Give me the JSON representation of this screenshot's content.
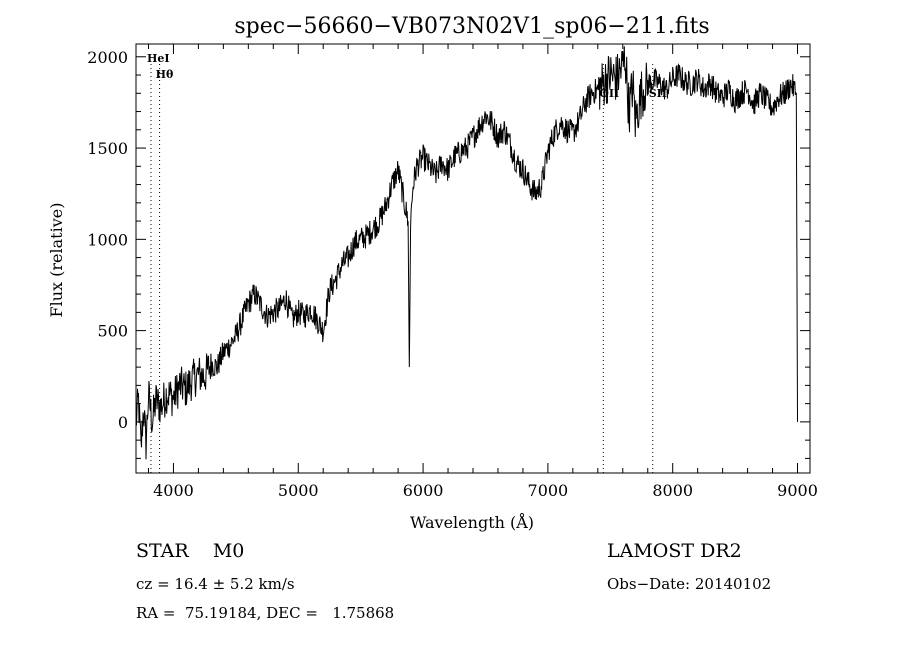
{
  "chart_data": {
    "type": "line",
    "title": "spec−56660−VB073N02V1_sp06−211.fits",
    "xlabel": "Wavelength (Å)",
    "ylabel": "Flux (relative)",
    "xlim": [
      3700,
      9100
    ],
    "ylim": [
      -280,
      2070
    ],
    "xticks": [
      4000,
      5000,
      6000,
      7000,
      8000,
      9000
    ],
    "yticks": [
      0,
      500,
      1000,
      1500,
      2000
    ],
    "grid": false,
    "series": [
      {
        "x": [
          3700,
          3720,
          3740,
          3760,
          3780,
          3800,
          3830,
          3860,
          3900,
          3950,
          4000,
          4050,
          4100,
          4150,
          4200,
          4250,
          4300,
          4350,
          4400,
          4450,
          4500,
          4550,
          4600,
          4650,
          4700,
          4750,
          4800,
          4850,
          4900,
          4950,
          5000,
          5050,
          5100,
          5150,
          5200,
          5250,
          5300,
          5350,
          5400,
          5450,
          5500,
          5550,
          5600,
          5650,
          5700,
          5750,
          5800,
          5850,
          5880,
          5890,
          5900,
          5920,
          5950,
          6000,
          6050,
          6100,
          6150,
          6200,
          6250,
          6300,
          6350,
          6400,
          6450,
          6500,
          6550,
          6600,
          6650,
          6700,
          6750,
          6800,
          6850,
          6900,
          6950,
          7000,
          7050,
          7100,
          7150,
          7200,
          7250,
          7300,
          7350,
          7400,
          7450,
          7500,
          7550,
          7600,
          7620,
          7650,
          7680,
          7700,
          7750,
          7800,
          7850,
          7900,
          7950,
          8000,
          8050,
          8100,
          8150,
          8200,
          8250,
          8300,
          8350,
          8400,
          8450,
          8500,
          8550,
          8600,
          8650,
          8700,
          8750,
          8800,
          8850,
          8900,
          8950,
          8990,
          9000
        ],
        "y": [
          0,
          120,
          -150,
          80,
          -120,
          150,
          0,
          120,
          80,
          160,
          130,
          200,
          180,
          230,
          260,
          250,
          320,
          300,
          380,
          420,
          470,
          560,
          650,
          700,
          640,
          580,
          600,
          620,
          680,
          560,
          600,
          580,
          620,
          560,
          500,
          720,
          780,
          860,
          900,
          980,
          1000,
          1020,
          1060,
          1100,
          1180,
          1300,
          1380,
          1200,
          1100,
          300,
          1100,
          1300,
          1400,
          1450,
          1400,
          1350,
          1420,
          1380,
          1450,
          1480,
          1500,
          1560,
          1620,
          1680,
          1640,
          1560,
          1600,
          1520,
          1420,
          1380,
          1300,
          1250,
          1300,
          1480,
          1580,
          1640,
          1600,
          1580,
          1650,
          1750,
          1800,
          1820,
          1860,
          1900,
          1880,
          1950,
          2000,
          1700,
          1850,
          1650,
          1800,
          1850,
          1870,
          1850,
          1820,
          1880,
          1900,
          1860,
          1850,
          1880,
          1820,
          1860,
          1800,
          1780,
          1820,
          1760,
          1800,
          1820,
          1740,
          1800,
          1760,
          1720,
          1780,
          1800,
          1850,
          1800,
          0
        ]
      }
    ],
    "lines": [
      {
        "label": "HeI",
        "x": 3820
      },
      {
        "label": "Hθ",
        "x": 3889
      },
      {
        "label": "OII",
        "x": 7444
      },
      {
        "label": "SII",
        "x": 7840
      }
    ]
  },
  "info": {
    "class_line": "STAR    M0",
    "cz_line": "cz = 16.4 ± 5.2 km/s",
    "radec_line": "RA =  75.19184, DEC =   1.75868",
    "survey": "LAMOST DR2",
    "obs_date": "Obs−Date: 20140102"
  }
}
